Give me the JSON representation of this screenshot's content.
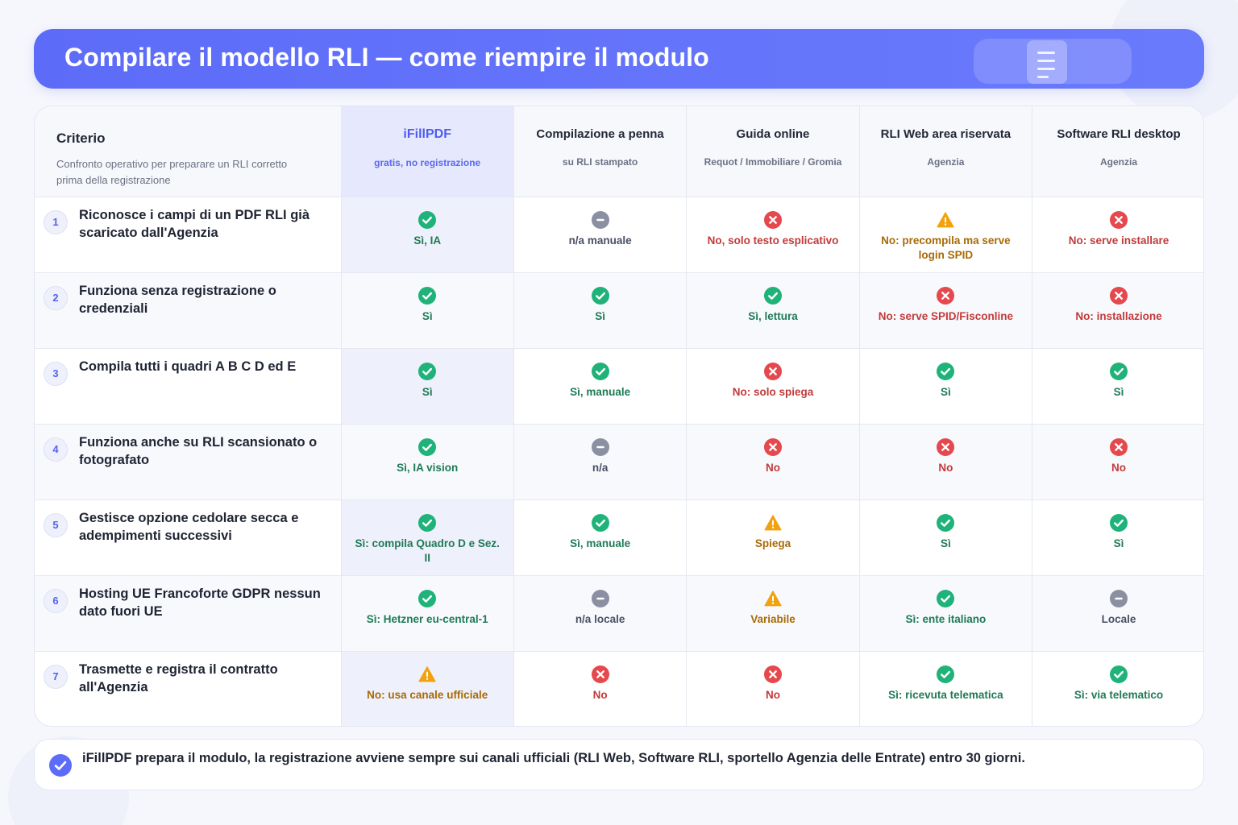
{
  "header": {
    "title": "Compilare il modello RLI — come riempire il modulo",
    "icon": "document-icon"
  },
  "table": {
    "criteria_header": {
      "title": "Criterio",
      "subtitle": "Confronto operativo per preparare un RLI corretto prima della registrazione"
    },
    "columns": [
      {
        "title": "iFillPDF",
        "subtitle": "gratis, no registrazione",
        "highlighted": true
      },
      {
        "title": "Compilazione a penna",
        "subtitle": "su RLI stampato"
      },
      {
        "title": "Guida online",
        "subtitle": "Requot / Immobiliare / Gromia"
      },
      {
        "title": "RLI Web area riservata",
        "subtitle": "Agenzia"
      },
      {
        "title": "Software RLI desktop",
        "subtitle": "Agenzia"
      }
    ],
    "rows": [
      {
        "num": "1",
        "criterion": "Riconosce i campi di un PDF RLI già scaricato dall'Agenzia",
        "cells": [
          {
            "status": "yes",
            "text": "Sì, IA"
          },
          {
            "status": "na",
            "text": "n/a manuale"
          },
          {
            "status": "no",
            "text": "No, solo testo esplicativo"
          },
          {
            "status": "warn",
            "text": "No: precompila ma serve login SPID"
          },
          {
            "status": "no",
            "text": "No: serve installare"
          }
        ]
      },
      {
        "num": "2",
        "criterion": "Funziona senza registrazione o credenziali",
        "cells": [
          {
            "status": "yes",
            "text": "Sì"
          },
          {
            "status": "yes",
            "text": "Sì"
          },
          {
            "status": "yes",
            "text": "Sì, lettura"
          },
          {
            "status": "no",
            "text": "No: serve SPID/Fisconline"
          },
          {
            "status": "no",
            "text": "No: installazione"
          }
        ]
      },
      {
        "num": "3",
        "criterion": "Compila tutti i quadri A B C D ed E",
        "cells": [
          {
            "status": "yes",
            "text": "Sì"
          },
          {
            "status": "yes",
            "text": "Sì, manuale"
          },
          {
            "status": "no",
            "text": "No: solo spiega"
          },
          {
            "status": "yes",
            "text": "Sì"
          },
          {
            "status": "yes",
            "text": "Sì"
          }
        ]
      },
      {
        "num": "4",
        "criterion": "Funziona anche su RLI scansionato o fotografato",
        "cells": [
          {
            "status": "yes",
            "text": "Sì, IA vision"
          },
          {
            "status": "na",
            "text": "n/a"
          },
          {
            "status": "no",
            "text": "No"
          },
          {
            "status": "no",
            "text": "No"
          },
          {
            "status": "no",
            "text": "No"
          }
        ]
      },
      {
        "num": "5",
        "criterion": "Gestisce opzione cedolare secca e adempimenti successivi",
        "cells": [
          {
            "status": "yes",
            "text": "Sì: compila Quadro D e Sez. II"
          },
          {
            "status": "yes",
            "text": "Sì, manuale"
          },
          {
            "status": "warn",
            "text": "Spiega"
          },
          {
            "status": "yes",
            "text": "Sì"
          },
          {
            "status": "yes",
            "text": "Sì"
          }
        ]
      },
      {
        "num": "6",
        "criterion": "Hosting UE Francoforte GDPR nessun dato fuori UE",
        "cells": [
          {
            "status": "yes",
            "text": "Sì: Hetzner eu-central-1"
          },
          {
            "status": "na",
            "text": "n/a locale"
          },
          {
            "status": "warn",
            "text": "Variabile"
          },
          {
            "status": "yes",
            "text": "Sì: ente italiano"
          },
          {
            "status": "na",
            "text": "Locale"
          }
        ]
      },
      {
        "num": "7",
        "criterion": "Trasmette e registra il contratto all'Agenzia",
        "cells": [
          {
            "status": "warn",
            "text": "No: usa canale ufficiale"
          },
          {
            "status": "no",
            "text": "No"
          },
          {
            "status": "no",
            "text": "No"
          },
          {
            "status": "yes",
            "text": "Sì: ricevuta telematica"
          },
          {
            "status": "yes",
            "text": "Sì: via telematico"
          }
        ]
      }
    ]
  },
  "note": {
    "icon": "check-circle-icon",
    "text": "iFillPDF prepara il modulo, la registrazione avviene sempre sui canali ufficiali (RLI Web, Software RLI, sportello Agenzia delle Entrate) entro 30 giorni."
  },
  "colors": {
    "accent": "#5d6cf8",
    "yes": "#1fb37a",
    "no": "#e5484d",
    "warn": "#f2a20c",
    "na": "#8a90a2"
  }
}
